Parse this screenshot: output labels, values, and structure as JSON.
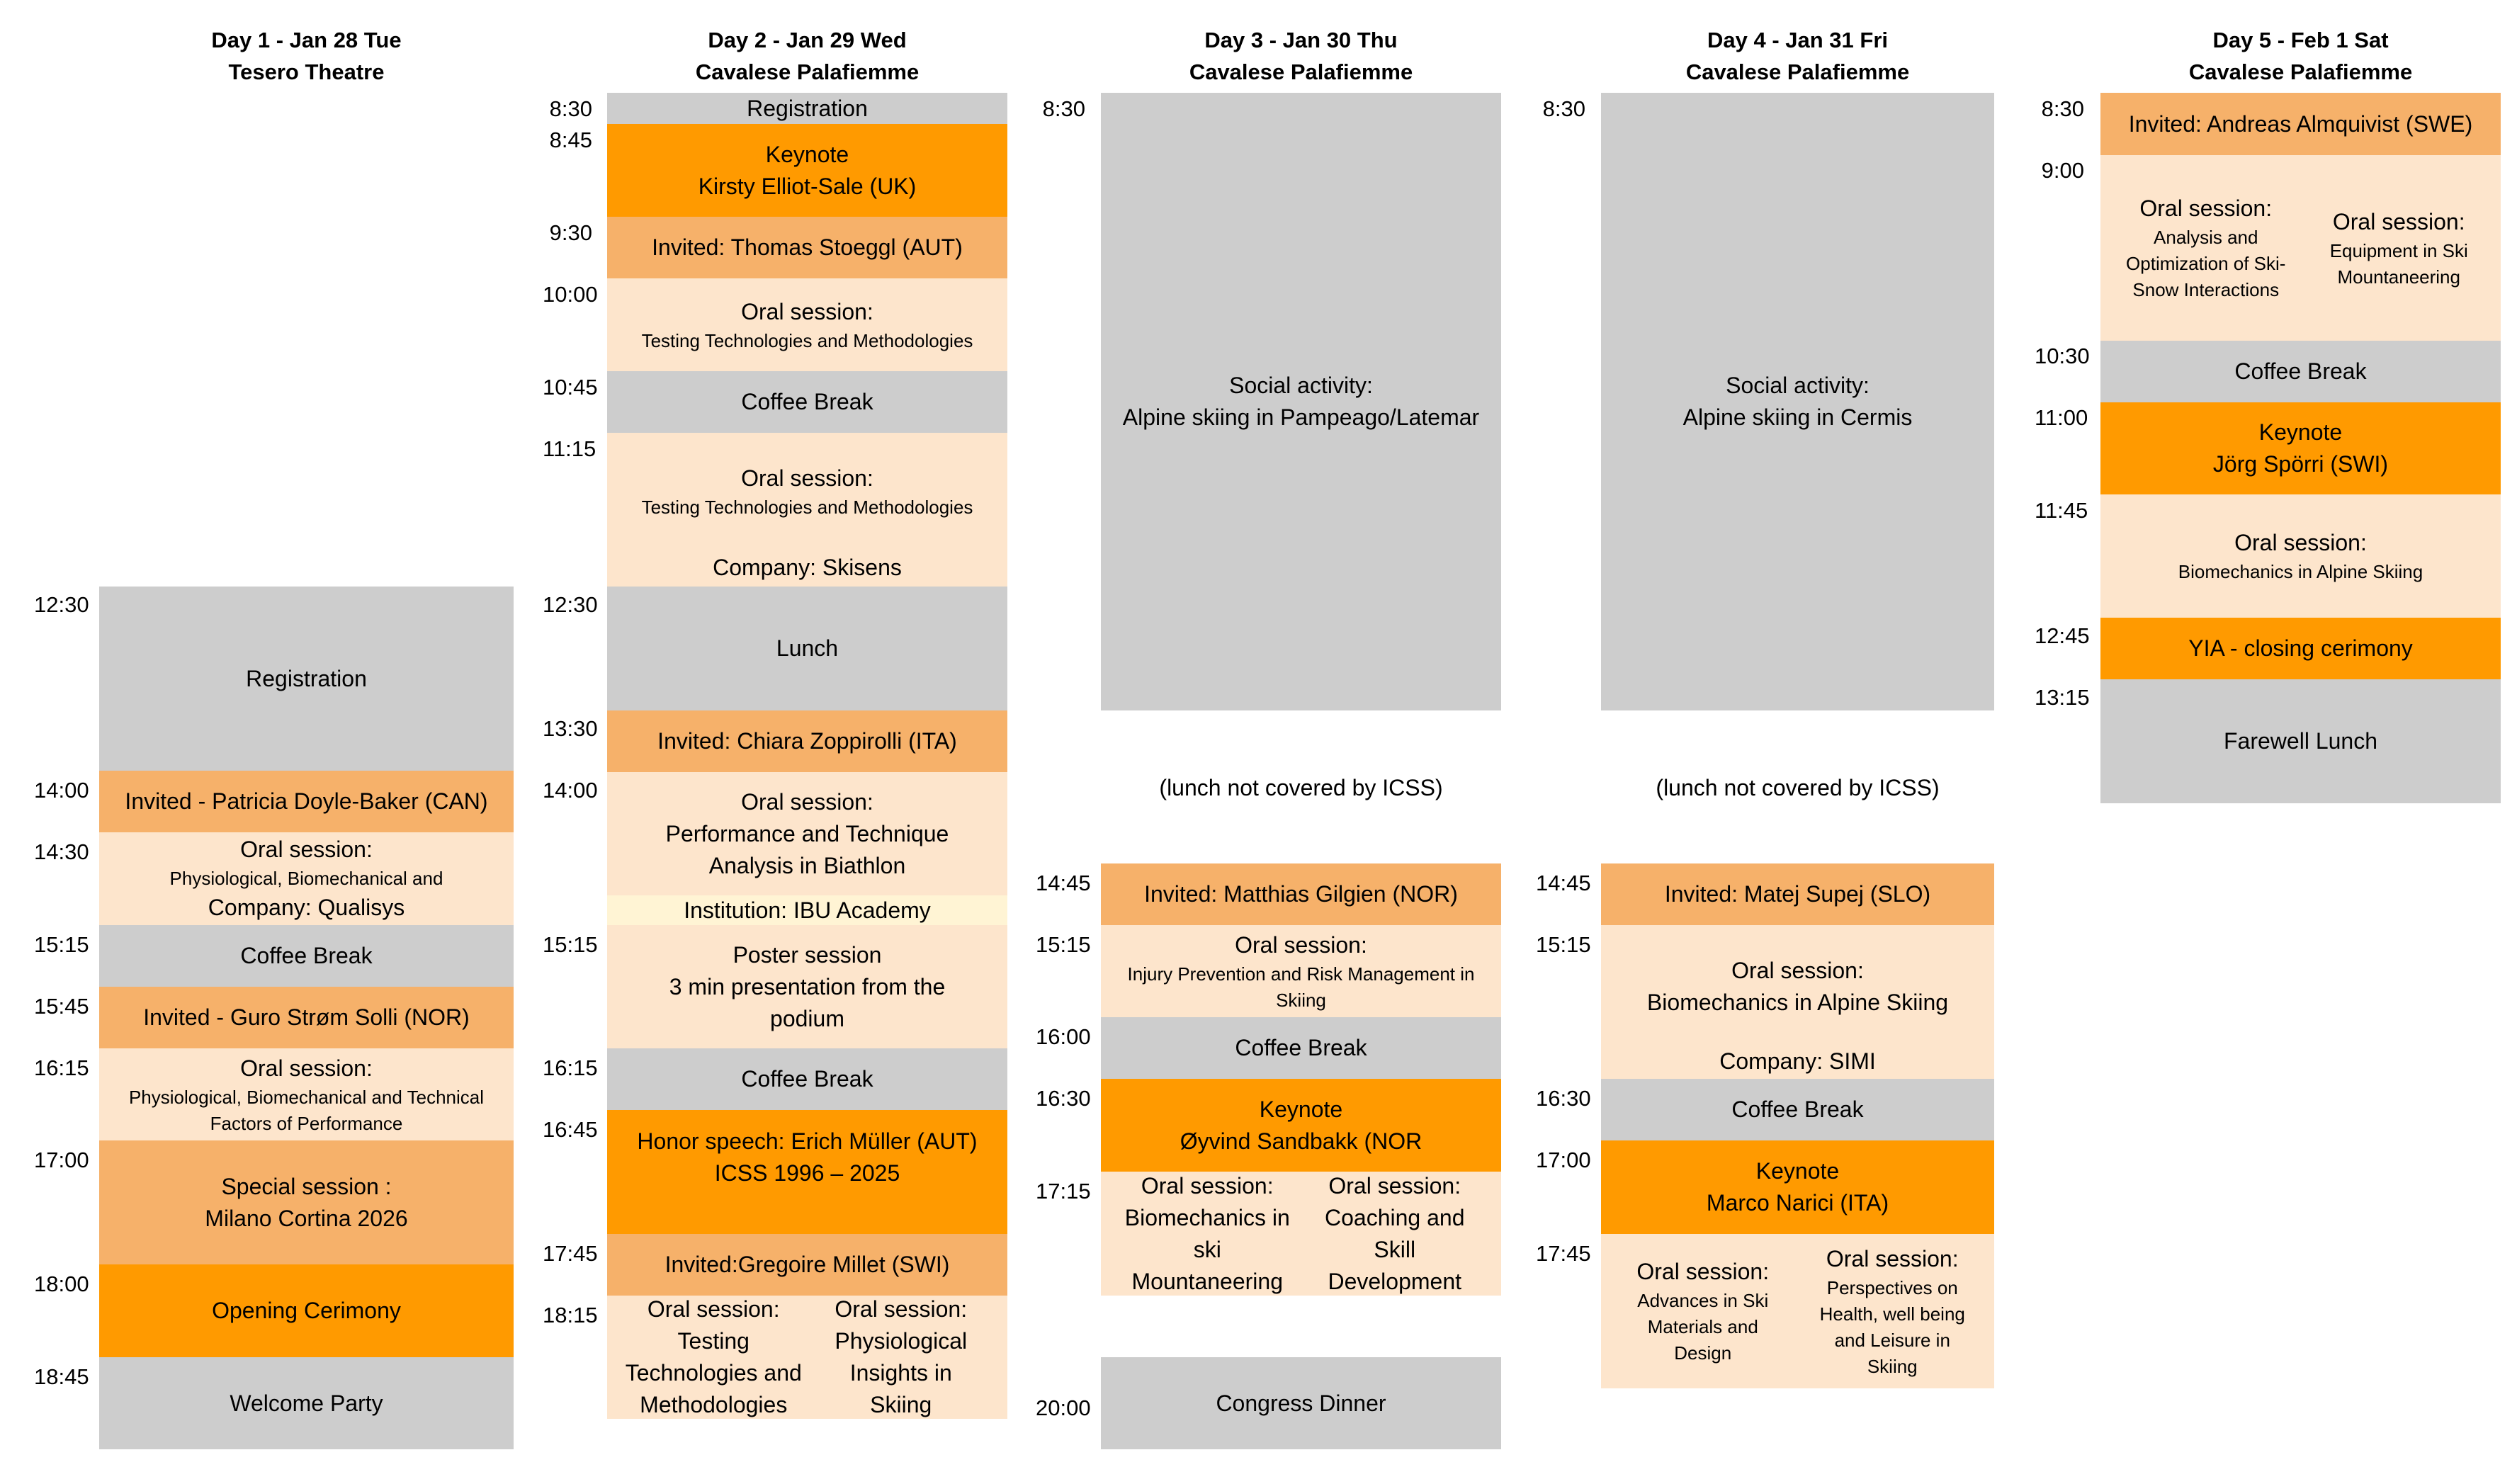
{
  "days": [
    {
      "title": "Day 1 - Jan 28 Tue",
      "venue": "Tesero Theatre"
    },
    {
      "title": "Day 2 -  Jan 29 Wed",
      "venue": "Cavalese Palafiemme"
    },
    {
      "title": "Day 3 - Jan 30 Thu",
      "venue": "Cavalese Palafiemme"
    },
    {
      "title": "Day 4 - Jan 31 Fri",
      "venue": "Cavalese Palafiemme"
    },
    {
      "title": "Day 5 - Feb 1 Sat",
      "venue": "Cavalese Palafiemme"
    }
  ],
  "day1": {
    "times": [
      "12:30",
      "14:00",
      "14:30",
      "15:15",
      "15:45",
      "16:15",
      "17:00",
      "18:00",
      "18:45"
    ],
    "registration": "Registration",
    "invited1": "Invited - Patricia Doyle-Baker (CAN)",
    "oral1": {
      "title": "Oral session:",
      "topic": "Physiological, Biomechanical and",
      "company": "Company: Qualisys"
    },
    "coffee": "Coffee Break",
    "invited2": "Invited - Guro Strøm Solli (NOR)",
    "oral2": {
      "title": "Oral session:",
      "topic": "Physiological, Biomechanical and Technical Factors of Performance"
    },
    "special": {
      "line1": "Special session :",
      "line2": "Milano Cortina 2026"
    },
    "opening": "Opening Cerimony",
    "welcome": "Welcome Party"
  },
  "day2": {
    "times": [
      "8:30",
      "8:45",
      "9:30",
      "10:00",
      "10:45",
      "11:15",
      "12:30",
      "13:30",
      "14:00",
      "15:15",
      "16:15",
      "16:45",
      "17:45",
      "18:15"
    ],
    "registration": "Registration",
    "keynote": {
      "line1": "Keynote",
      "line2": "Kirsty Elliot-Sale (UK)"
    },
    "invited1": "Invited: Thomas Stoeggl (AUT)",
    "oral1": {
      "title": "Oral session:",
      "topic": "Testing Technologies and Methodologies"
    },
    "coffee1": "Coffee Break",
    "oral2": {
      "title": "Oral session:",
      "topic": "Testing Technologies and Methodologies",
      "company": "Company: Skisens"
    },
    "lunch": "Lunch",
    "invited2": "Invited: Chiara Zoppirolli (ITA)",
    "oral3": {
      "title": "Oral session:",
      "line2": "Performance and Technique",
      "line3": "Analysis in Biathlon"
    },
    "institution": "Institution: IBU Academy",
    "poster": {
      "line1": "Poster session",
      "line2": "3 min presentation from the",
      "line3": "podium"
    },
    "coffee2": "Coffee Break",
    "honor": {
      "line1": "Honor speech: Erich Müller (AUT)",
      "line2": "ICSS 1996 – 2025"
    },
    "invited3": "Invited:Gregoire Millet (SWI)",
    "oralA": {
      "l1": "Oral session:",
      "l2": "Testing",
      "l3": "Technologies and",
      "l4": "Methodologies"
    },
    "oralB": {
      "l1": "Oral session:",
      "l2": "Physiological",
      "l3": "Insights in",
      "l4": "Skiing"
    }
  },
  "day3": {
    "times": [
      "8:30",
      "14:45",
      "15:15",
      "16:00",
      "16:30",
      "17:15",
      "20:00"
    ],
    "social": {
      "line1": "Social activity:",
      "line2": "Alpine skiing in Pampeago/Latemar"
    },
    "lunch_note": "(lunch not covered by ICSS)",
    "invited": "Invited: Matthias Gilgien (NOR)",
    "oral1": {
      "title": "Oral session:",
      "topic": "Injury Prevention and Risk Management in Skiing"
    },
    "coffee": "Coffee Break",
    "keynote": {
      "line1": "Keynote",
      "line2": "Øyvind Sandbakk (NOR"
    },
    "oralA": {
      "l1": "Oral session:",
      "l2": "Biomechanics in",
      "l3": "ski",
      "l4": "Mountaneering"
    },
    "oralB": {
      "l1": "Oral session:",
      "l2": "Coaching and",
      "l3": "Skill",
      "l4": "Development"
    },
    "dinner": "Congress Dinner"
  },
  "day4": {
    "times": [
      "8:30",
      "14:45",
      "15:15",
      "16:30",
      "17:00",
      "17:45"
    ],
    "social": {
      "line1": "Social activity:",
      "line2": "Alpine skiing in Cermis"
    },
    "lunch_note": "(lunch not covered by ICSS)",
    "invited": "Invited: Matej Supej (SLO)",
    "oral1": {
      "title": "Oral session:",
      "topic": "Biomechanics in Alpine Skiing",
      "company": "Company: SIMI"
    },
    "coffee": "Coffee Break",
    "keynote": {
      "line1": "Keynote",
      "line2": "Marco Narici (ITA)"
    },
    "oralA": {
      "l1": "Oral session:",
      "l2": "Advances in Ski",
      "l3": "Materials and",
      "l4": "Design"
    },
    "oralB": {
      "l1": "Oral session:",
      "l2": "Perspectives on",
      "l3": "Health, well being",
      "l4": "and Leisure in",
      "l5": "Skiing"
    }
  },
  "day5": {
    "times": [
      "8:30",
      "9:00",
      "10:30",
      "11:00",
      "11:45",
      "12:45",
      "13:15"
    ],
    "invited": "Invited: Andreas Almquivist (SWE)",
    "oralA": {
      "l1": "Oral session:",
      "l2": "Analysis and",
      "l3": "Optimization of Ski-",
      "l4": "Snow Interactions"
    },
    "oralB": {
      "l1": "Oral session:",
      "l2": "Equipment in Ski",
      "l3": "Mountaneering"
    },
    "coffee": "Coffee Break",
    "keynote": {
      "line1": "Keynote",
      "line2": "Jörg Spörri (SWI)"
    },
    "oral2": {
      "title": "Oral session:",
      "topic": "Biomechanics in Alpine Skiing"
    },
    "yia": "YIA  -  closing cerimony",
    "farewell": "Farewell Lunch"
  },
  "colors": {
    "gray": "#cdcdcd",
    "orange": "#ff9a00",
    "light_orange": "#f6b16a",
    "peach": "#fde5cc",
    "light_yellow": "#fff4d4"
  }
}
